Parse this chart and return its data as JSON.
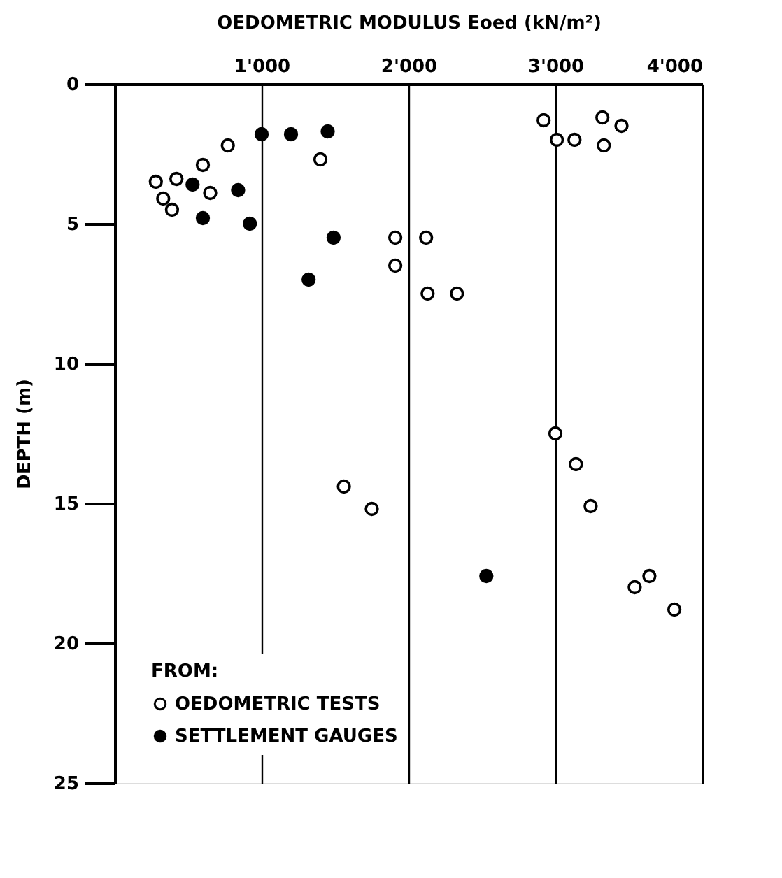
{
  "chart_data": {
    "type": "scatter",
    "xlabel": "OEDOMETRIC MODULUS    Eoed (kN/m²)",
    "ylabel": "DEPTH (m)",
    "legend_title": "FROM:",
    "xlim": [
      0,
      4000
    ],
    "xticks": [
      {
        "value": 1000,
        "label": "1'000"
      },
      {
        "value": 2000,
        "label": "2'000"
      },
      {
        "value": 3000,
        "label": "3'000"
      },
      {
        "value": 4000,
        "label": "4'000"
      }
    ],
    "ylim": [
      25,
      0
    ],
    "yticks": [
      0,
      5,
      10,
      15,
      20,
      25
    ],
    "grid": "x",
    "legend": "bottom left",
    "marker": "circle",
    "series": [
      {
        "name": "OEDOMETRIC TESTS",
        "color": "#ffffff",
        "x": [
          2920,
          3010,
          3130,
          3320,
          3450,
          3330,
          770,
          1400,
          600,
          280,
          420,
          650,
          330,
          390,
          1910,
          2120,
          1910,
          2130,
          2330,
          3000,
          3140,
          3240,
          1560,
          1750,
          3540,
          3640,
          3810
        ],
        "values": [
          1.3,
          2.0,
          2.0,
          1.2,
          1.5,
          2.2,
          2.2,
          2.7,
          2.9,
          3.5,
          3.4,
          3.9,
          4.1,
          4.5,
          5.5,
          5.5,
          6.5,
          7.5,
          7.5,
          12.5,
          13.6,
          15.1,
          14.4,
          15.2,
          18.0,
          17.6,
          18.8
        ]
      },
      {
        "name": "SETTLEMENT GAUGES",
        "color": "#000000",
        "x": [
          1000,
          1200,
          1450,
          530,
          840,
          600,
          920,
          1490,
          1320,
          2530
        ],
        "values": [
          1.8,
          1.8,
          1.7,
          3.6,
          3.8,
          4.8,
          5.0,
          5.5,
          7.0,
          17.6
        ]
      }
    ]
  }
}
